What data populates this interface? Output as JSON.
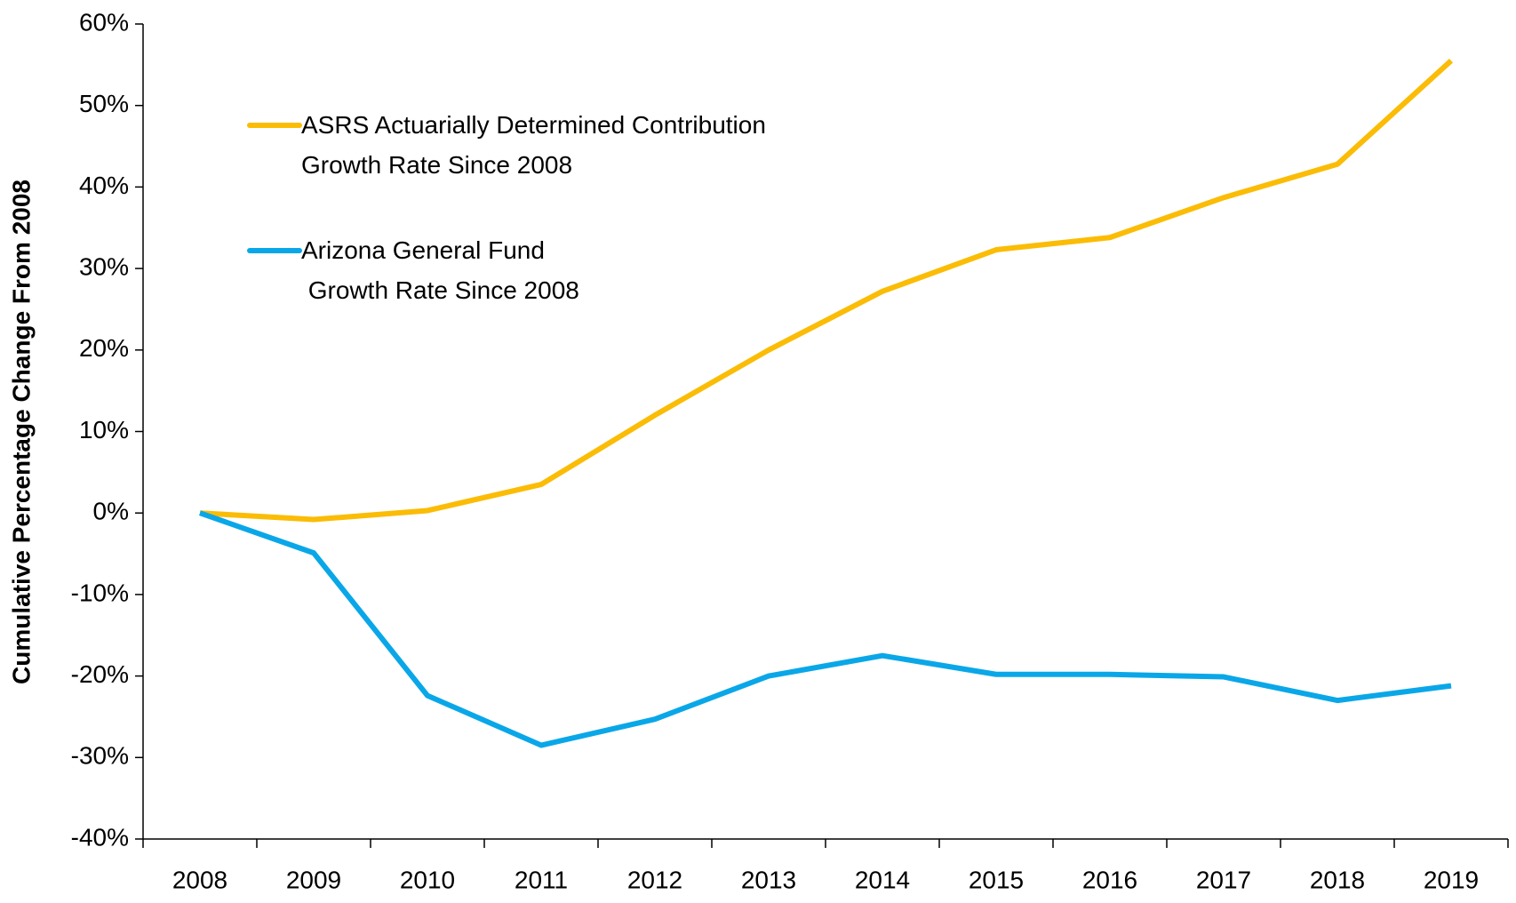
{
  "chart_data": {
    "type": "line",
    "y_label": "Cumulative Percentage Change From 2008",
    "categories": [
      "2008",
      "2009",
      "2010",
      "2011",
      "2012",
      "2013",
      "2014",
      "2015",
      "2016",
      "2017",
      "2018",
      "2019"
    ],
    "series": [
      {
        "name": "ASRS Actuarially Determined Contribution\nGrowth Rate Since 2008",
        "color": "#fbbc05",
        "values": [
          0,
          -0.8,
          0.3,
          3.5,
          12,
          20,
          27.2,
          32.3,
          33.8,
          38.7,
          42.8,
          55.5
        ]
      },
      {
        "name": "Arizona General Fund\n Growth Rate Since 2008",
        "color": "#0aa7e8",
        "values": [
          0,
          -4.9,
          -22.4,
          -28.5,
          -25.3,
          -20,
          -17.5,
          -19.8,
          -19.8,
          -20.1,
          -23,
          -21.2
        ]
      }
    ],
    "ylim": [
      -40,
      60
    ],
    "yticks": [
      {
        "value": -40,
        "label": "-40%"
      },
      {
        "value": -30,
        "label": "-30%"
      },
      {
        "value": -20,
        "label": "-20%"
      },
      {
        "value": -10,
        "label": "-10%"
      },
      {
        "value": 0,
        "label": "0%"
      },
      {
        "value": 10,
        "label": "10%"
      },
      {
        "value": 20,
        "label": "20%"
      },
      {
        "value": 30,
        "label": "30%"
      },
      {
        "value": 40,
        "label": "40%"
      },
      {
        "value": 50,
        "label": "50%"
      },
      {
        "value": 60,
        "label": "60%"
      }
    ],
    "legend": "upper left"
  }
}
